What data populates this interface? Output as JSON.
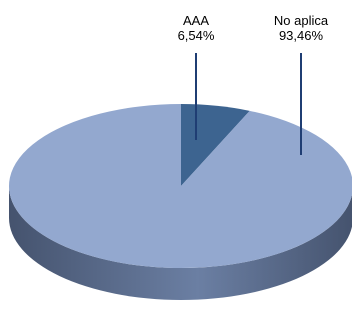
{
  "chart_data": {
    "type": "pie",
    "title": "",
    "categories": [
      "AAA",
      "No aplica"
    ],
    "values": [
      6.54,
      93.46
    ],
    "value_labels": [
      "6,54%",
      "93,46%"
    ],
    "three_d": true,
    "legend": "none",
    "colors": {
      "AAA": "#3d6490",
      "No aplica": "#93a8cf",
      "side_light": "#6b7fa3",
      "side_dark": "#45536e",
      "leader_lines": "#1f3d73"
    }
  }
}
